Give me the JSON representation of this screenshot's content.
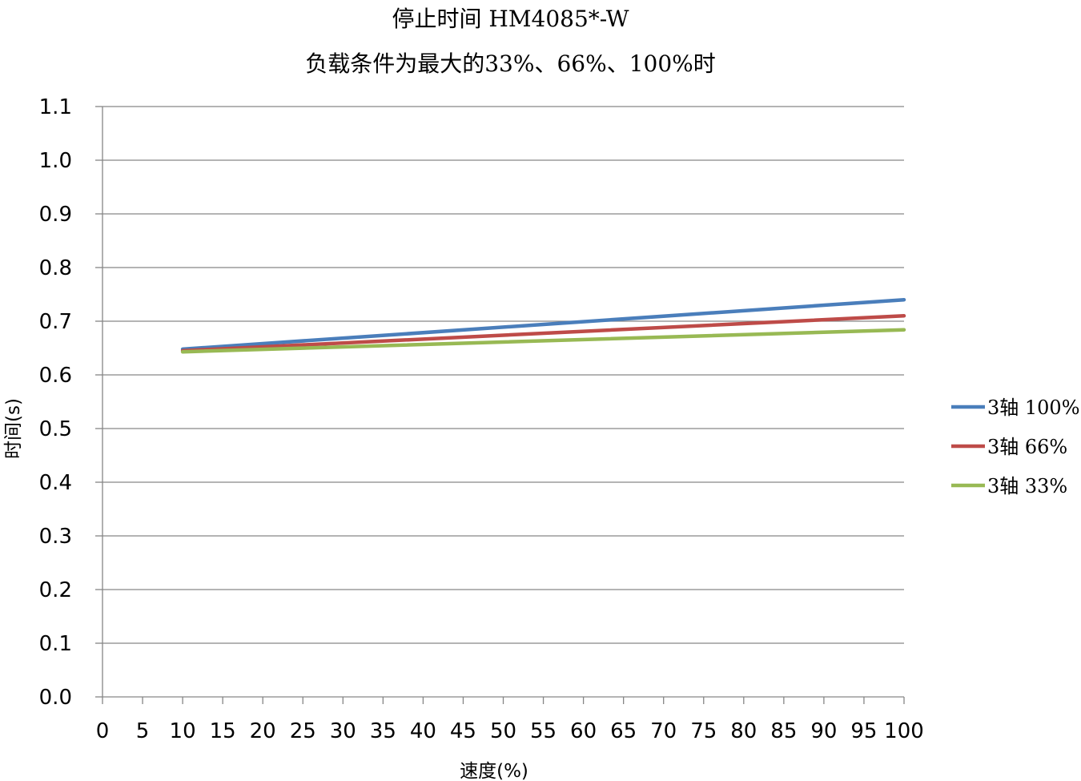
{
  "chart_data": {
    "type": "line",
    "title": "停止时间 HM4085*-W",
    "subtitle": "负载条件为最大的33%、66%、100%时",
    "xlabel": "速度(%)",
    "ylabel": "时间(s)",
    "xlim": [
      0,
      100
    ],
    "ylim": [
      0.0,
      1.1
    ],
    "x_ticks": [
      0,
      5,
      10,
      15,
      20,
      25,
      30,
      35,
      40,
      45,
      50,
      55,
      60,
      65,
      70,
      75,
      80,
      85,
      90,
      95,
      100
    ],
    "y_ticks": [
      "0.0",
      "0.1",
      "0.2",
      "0.3",
      "0.4",
      "0.5",
      "0.6",
      "0.7",
      "0.8",
      "0.9",
      "1.0",
      "1.1"
    ],
    "grid": "horizontal",
    "legend_position": "right",
    "series": [
      {
        "name": "3轴 100%",
        "color": "#4a7ebb",
        "x": [
          10,
          100
        ],
        "y": [
          0.648,
          0.74
        ]
      },
      {
        "name": "3轴 66%",
        "color": "#be4b48",
        "x": [
          10,
          100
        ],
        "y": [
          0.645,
          0.71
        ]
      },
      {
        "name": "3轴 33%",
        "color": "#98b954",
        "x": [
          10,
          100
        ],
        "y": [
          0.643,
          0.684
        ]
      }
    ]
  }
}
